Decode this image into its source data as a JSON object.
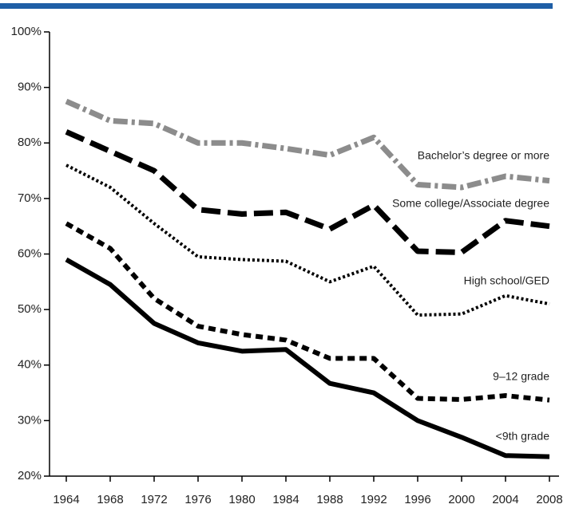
{
  "chart_data": {
    "type": "line",
    "x": [
      1964,
      1968,
      1972,
      1976,
      1980,
      1984,
      1988,
      1992,
      1996,
      2000,
      2004,
      2008
    ],
    "xlim": [
      1964,
      2008
    ],
    "xticks": [
      1964,
      1968,
      1972,
      1976,
      1980,
      1984,
      1988,
      1992,
      1996,
      2000,
      2004,
      2008
    ],
    "ylim": [
      20,
      100
    ],
    "yticks": [
      {
        "value": 20,
        "label": "20%"
      },
      {
        "value": 30,
        "label": "30%"
      },
      {
        "value": 40,
        "label": "40%"
      },
      {
        "value": 50,
        "label": "50%"
      },
      {
        "value": 60,
        "label": "60%"
      },
      {
        "value": 70,
        "label": "70%"
      },
      {
        "value": 80,
        "label": "80%"
      },
      {
        "value": 90,
        "label": "90%"
      },
      {
        "value": 100,
        "label": "100%"
      }
    ],
    "series": [
      {
        "name": "Bachelor’s degree or more",
        "color": "#8c8c8c",
        "values": [
          87.5,
          84,
          83.5,
          80,
          80,
          79,
          77.8,
          81,
          72.5,
          72,
          74,
          73.2
        ]
      },
      {
        "name": "Some college/Associate degree",
        "color": "#000000",
        "values": [
          82,
          78.5,
          75,
          68,
          67.2,
          67.5,
          64.5,
          68.8,
          60.5,
          60.3,
          66,
          65
        ]
      },
      {
        "name": "High school/GED",
        "color": "#000000",
        "values": [
          76,
          72,
          65.5,
          59.5,
          59,
          58.7,
          55,
          57.8,
          49,
          49.2,
          52.5,
          51
        ]
      },
      {
        "name": "9–12 grade",
        "color": "#000000",
        "values": [
          65.5,
          61,
          52,
          47,
          45.5,
          44.5,
          41.2,
          41.2,
          34,
          33.8,
          34.5,
          33.7
        ]
      },
      {
        "name": "<9th grade",
        "color": "#000000",
        "values": [
          59,
          54.5,
          47.5,
          44,
          42.5,
          42.8,
          36.7,
          35,
          30,
          27,
          23.7,
          23.5
        ]
      }
    ]
  }
}
